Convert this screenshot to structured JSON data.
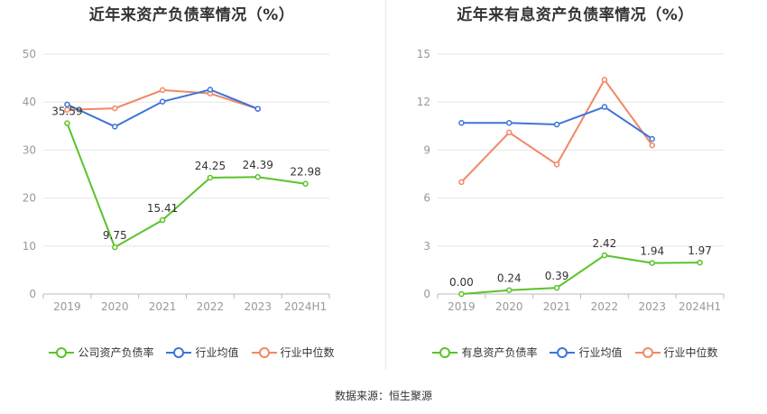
{
  "colors": {
    "company": "#5ac32b",
    "avg": "#3f74d9",
    "median": "#f08866",
    "grid": "#e6e6e6",
    "axis": "#999999",
    "text": "#333333"
  },
  "source_text": "数据来源：恒生聚源",
  "chart_data": [
    {
      "type": "line",
      "title": "近年来资产负债率情况（%）",
      "categories": [
        "2019",
        "2020",
        "2021",
        "2022",
        "2023",
        "2024H1"
      ],
      "ylim": [
        0,
        50
      ],
      "yticks": [
        0,
        10,
        20,
        30,
        40,
        50
      ],
      "grid": true,
      "legend_position": "bottom",
      "series": [
        {
          "name": "公司资产负债率",
          "color_key": "company",
          "values": [
            35.59,
            9.75,
            15.41,
            24.25,
            24.39,
            22.98
          ],
          "labels": [
            "35.59",
            "9.75",
            "15.41",
            "24.25",
            "24.39",
            "22.98"
          ]
        },
        {
          "name": "行业均值",
          "color_key": "avg",
          "values": [
            39.5,
            34.9,
            40.1,
            42.6,
            38.6,
            null
          ]
        },
        {
          "name": "行业中位数",
          "color_key": "median",
          "values": [
            38.4,
            38.7,
            42.5,
            41.8,
            38.6,
            null
          ]
        }
      ]
    },
    {
      "type": "line",
      "title": "近年来有息资产负债率情况（%）",
      "categories": [
        "2019",
        "2020",
        "2021",
        "2022",
        "2023",
        "2024H1"
      ],
      "ylim": [
        0,
        15
      ],
      "yticks": [
        0,
        3,
        6,
        9,
        12,
        15
      ],
      "grid": true,
      "legend_position": "bottom",
      "series": [
        {
          "name": "有息资产负债率",
          "color_key": "company",
          "values": [
            0.0,
            0.24,
            0.39,
            2.42,
            1.94,
            1.97
          ],
          "labels": [
            "0.00",
            "0.24",
            "0.39",
            "2.42",
            "1.94",
            "1.97"
          ]
        },
        {
          "name": "行业均值",
          "color_key": "avg",
          "values": [
            10.7,
            10.7,
            10.6,
            11.7,
            9.7,
            null
          ]
        },
        {
          "name": "行业中位数",
          "color_key": "median",
          "values": [
            7.0,
            10.1,
            8.1,
            13.4,
            9.3,
            null
          ]
        }
      ]
    }
  ]
}
